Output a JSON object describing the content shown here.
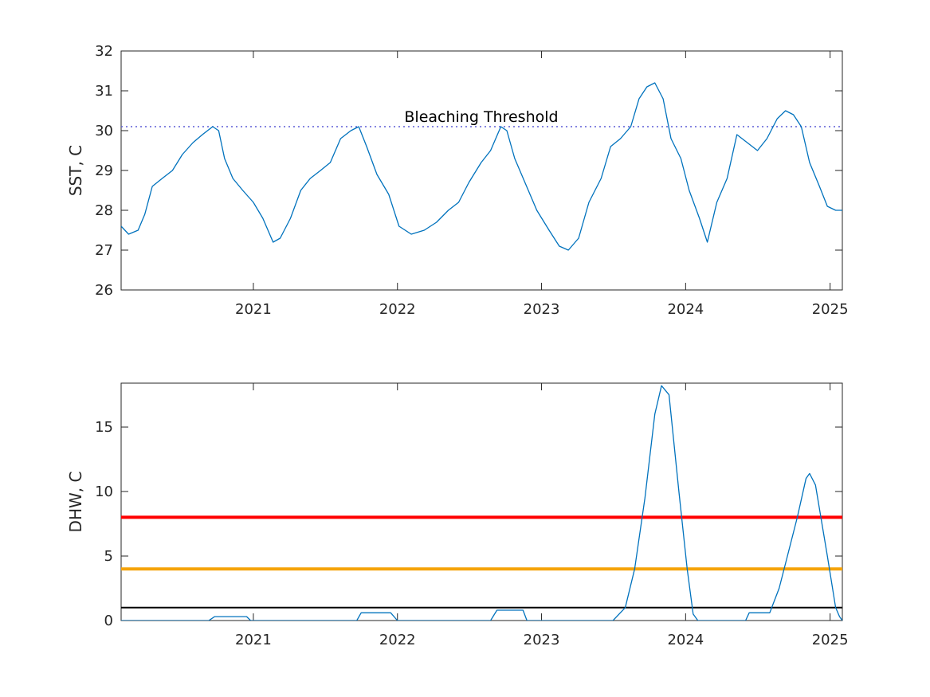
{
  "chart_data": [
    {
      "type": "line",
      "title": "",
      "xlabel": "",
      "ylabel": "SST, C",
      "xlim": [
        "2020-02-01",
        "2025-02-01"
      ],
      "ylim": [
        26,
        32
      ],
      "yticks": [
        26,
        27,
        28,
        29,
        30,
        31,
        32
      ],
      "xticks": [
        "2021-01-01",
        "2022-01-01",
        "2023-01-01",
        "2024-01-01",
        "2025-01-01"
      ],
      "xtick_labels": [
        "2021",
        "2022",
        "2023",
        "2024",
        "2025"
      ],
      "grid": false,
      "threshold": {
        "label": "Bleaching Threshold",
        "value": 30.1,
        "style": "dotted",
        "color": "#5b5bd6"
      },
      "series": [
        {
          "color": "#0072BD",
          "points": [
            [
              "2020-02-01",
              27.6
            ],
            [
              "2020-02-20",
              27.4
            ],
            [
              "2020-03-15",
              27.5
            ],
            [
              "2020-04-01",
              27.9
            ],
            [
              "2020-04-20",
              28.6
            ],
            [
              "2020-05-15",
              28.8
            ],
            [
              "2020-06-10",
              29.0
            ],
            [
              "2020-07-05",
              29.4
            ],
            [
              "2020-08-01",
              29.7
            ],
            [
              "2020-08-25",
              29.9
            ],
            [
              "2020-09-20",
              30.1
            ],
            [
              "2020-10-05",
              30.0
            ],
            [
              "2020-10-20",
              29.3
            ],
            [
              "2020-11-10",
              28.8
            ],
            [
              "2020-12-05",
              28.5
            ],
            [
              "2021-01-01",
              28.2
            ],
            [
              "2021-01-25",
              27.8
            ],
            [
              "2021-02-20",
              27.2
            ],
            [
              "2021-03-10",
              27.3
            ],
            [
              "2021-04-05",
              27.8
            ],
            [
              "2021-05-01",
              28.5
            ],
            [
              "2021-05-25",
              28.8
            ],
            [
              "2021-06-20",
              29.0
            ],
            [
              "2021-07-15",
              29.2
            ],
            [
              "2021-08-10",
              29.8
            ],
            [
              "2021-09-05",
              30.0
            ],
            [
              "2021-09-25",
              30.1
            ],
            [
              "2021-10-15",
              29.6
            ],
            [
              "2021-11-10",
              28.9
            ],
            [
              "2021-12-10",
              28.4
            ],
            [
              "2022-01-05",
              27.6
            ],
            [
              "2022-02-05",
              27.4
            ],
            [
              "2022-03-10",
              27.5
            ],
            [
              "2022-04-10",
              27.7
            ],
            [
              "2022-05-10",
              28.0
            ],
            [
              "2022-06-05",
              28.2
            ],
            [
              "2022-07-01",
              28.7
            ],
            [
              "2022-08-01",
              29.2
            ],
            [
              "2022-08-25",
              29.5
            ],
            [
              "2022-09-20",
              30.1
            ],
            [
              "2022-10-05",
              30.0
            ],
            [
              "2022-10-25",
              29.3
            ],
            [
              "2022-11-20",
              28.7
            ],
            [
              "2022-12-20",
              28.0
            ],
            [
              "2023-01-20",
              27.5
            ],
            [
              "2023-02-15",
              27.1
            ],
            [
              "2023-03-10",
              27.0
            ],
            [
              "2023-04-05",
              27.3
            ],
            [
              "2023-05-01",
              28.2
            ],
            [
              "2023-06-01",
              28.8
            ],
            [
              "2023-06-25",
              29.6
            ],
            [
              "2023-07-20",
              29.8
            ],
            [
              "2023-08-15",
              30.1
            ],
            [
              "2023-09-05",
              30.8
            ],
            [
              "2023-09-25",
              31.1
            ],
            [
              "2023-10-15",
              31.2
            ],
            [
              "2023-11-05",
              30.8
            ],
            [
              "2023-11-25",
              29.8
            ],
            [
              "2023-12-20",
              29.3
            ],
            [
              "2024-01-10",
              28.5
            ],
            [
              "2024-02-05",
              27.8
            ],
            [
              "2024-02-25",
              27.2
            ],
            [
              "2024-03-20",
              28.2
            ],
            [
              "2024-04-15",
              28.8
            ],
            [
              "2024-05-10",
              29.9
            ],
            [
              "2024-06-05",
              29.7
            ],
            [
              "2024-07-01",
              29.5
            ],
            [
              "2024-07-25",
              29.8
            ],
            [
              "2024-08-20",
              30.3
            ],
            [
              "2024-09-10",
              30.5
            ],
            [
              "2024-09-30",
              30.4
            ],
            [
              "2024-10-20",
              30.1
            ],
            [
              "2024-11-10",
              29.2
            ],
            [
              "2024-12-05",
              28.6
            ],
            [
              "2024-12-25",
              28.1
            ],
            [
              "2025-01-15",
              28.0
            ],
            [
              "2025-02-01",
              28.0
            ]
          ]
        }
      ]
    },
    {
      "type": "line",
      "title": "",
      "xlabel": "",
      "ylabel": "DHW, C",
      "xlim": [
        "2020-02-01",
        "2025-02-01"
      ],
      "ylim": [
        0,
        18.4
      ],
      "yticks": [
        0,
        5,
        10,
        15
      ],
      "xticks": [
        "2021-01-01",
        "2022-01-01",
        "2023-01-01",
        "2024-01-01",
        "2025-01-01"
      ],
      "xtick_labels": [
        "2021",
        "2022",
        "2023",
        "2024",
        "2025"
      ],
      "grid": false,
      "reference_lines": [
        {
          "value": 8,
          "color": "#ff0000"
        },
        {
          "value": 4,
          "color": "#f5a30a"
        },
        {
          "value": 1,
          "color": "#000000"
        }
      ],
      "series": [
        {
          "color": "#0072BD",
          "points": [
            [
              "2020-02-01",
              0
            ],
            [
              "2020-09-10",
              0
            ],
            [
              "2020-09-25",
              0.3
            ],
            [
              "2020-12-15",
              0.3
            ],
            [
              "2020-12-25",
              0
            ],
            [
              "2021-09-20",
              0
            ],
            [
              "2021-10-01",
              0.6
            ],
            [
              "2021-12-15",
              0.6
            ],
            [
              "2022-01-01",
              0
            ],
            [
              "2022-08-25",
              0
            ],
            [
              "2022-09-10",
              0.8
            ],
            [
              "2022-11-15",
              0.8
            ],
            [
              "2022-11-25",
              0
            ],
            [
              "2023-07-01",
              0
            ],
            [
              "2023-08-01",
              1.0
            ],
            [
              "2023-08-25",
              4.0
            ],
            [
              "2023-09-20",
              9.5
            ],
            [
              "2023-10-15",
              16.0
            ],
            [
              "2023-11-01",
              18.2
            ],
            [
              "2023-11-20",
              17.5
            ],
            [
              "2023-12-15",
              10.0
            ],
            [
              "2024-01-05",
              4.0
            ],
            [
              "2024-01-20",
              0.5
            ],
            [
              "2024-02-01",
              0
            ],
            [
              "2024-06-01",
              0
            ],
            [
              "2024-06-10",
              0.6
            ],
            [
              "2024-08-01",
              0.6
            ],
            [
              "2024-08-25",
              2.5
            ],
            [
              "2024-09-15",
              5.0
            ],
            [
              "2024-10-10",
              8.0
            ],
            [
              "2024-11-01",
              11.0
            ],
            [
              "2024-11-10",
              11.4
            ],
            [
              "2024-11-25",
              10.5
            ],
            [
              "2024-12-25",
              5.0
            ],
            [
              "2025-01-15",
              1.0
            ],
            [
              "2025-01-25",
              0.3
            ],
            [
              "2025-02-01",
              0
            ]
          ]
        }
      ]
    }
  ]
}
